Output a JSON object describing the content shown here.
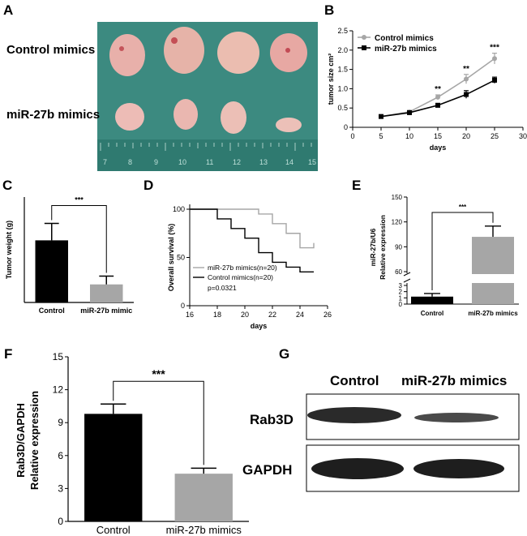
{
  "panel_letters": [
    "A",
    "B",
    "C",
    "D",
    "E",
    "F",
    "G"
  ],
  "panel_a": {
    "row_labels": [
      "Control mimics",
      "miR-27b mimics"
    ],
    "ruler_numbers": [
      "7",
      "8",
      "9",
      "10",
      "11",
      "12",
      "13",
      "14",
      "15"
    ]
  },
  "panel_g": {
    "lane_labels": [
      "Control",
      "miR-27b mimics"
    ],
    "band_labels": [
      "Rab3D",
      "GAPDH"
    ]
  },
  "colors": {
    "control": "#000000",
    "treatment": "#a6a6a6",
    "tumor": "#e8b0aa",
    "background_a": "#3c8a80"
  },
  "chart_data": [
    {
      "panel": "B",
      "type": "line",
      "x": [
        5,
        10,
        15,
        20,
        25
      ],
      "series": [
        {
          "name": "Control mimics",
          "values": [
            0.28,
            0.4,
            0.78,
            1.25,
            1.78
          ],
          "errors": [
            0.02,
            0.04,
            0.06,
            0.12,
            0.14
          ],
          "color": "#a6a6a6"
        },
        {
          "name": "miR-27b mimics",
          "values": [
            0.28,
            0.38,
            0.57,
            0.85,
            1.22
          ],
          "errors": [
            0.02,
            0.03,
            0.05,
            0.1,
            0.08
          ],
          "color": "#000000"
        }
      ],
      "annotations": [
        {
          "x": 15,
          "text": "**"
        },
        {
          "x": 20,
          "text": "**"
        },
        {
          "x": 25,
          "text": "***"
        }
      ],
      "xlabel": "days",
      "ylabel": "tumor size cm²",
      "xlim": [
        0,
        30
      ],
      "ylim": [
        0,
        2.5
      ],
      "xticks": [
        "0",
        "5",
        "10",
        "15",
        "20",
        "25",
        "30"
      ],
      "yticks": [
        "0",
        "0.5",
        "1.0",
        "1.5",
        "2.0",
        "2.5"
      ],
      "legend": "top-left"
    },
    {
      "panel": "C",
      "type": "bar",
      "categories": [
        "Control",
        "miR-27b mimic"
      ],
      "values": [
        1.65,
        0.48
      ],
      "errors": [
        0.45,
        0.22
      ],
      "colors": [
        "#000000",
        "#a6a6a6"
      ],
      "ylabel": "Tumor weight (g)",
      "ylim": [
        0,
        2.8
      ],
      "significance": "***"
    },
    {
      "panel": "D",
      "type": "line",
      "series": [
        {
          "name": "miR-27b mimics(n=20)",
          "color": "#a6a6a6",
          "x": [
            16,
            21,
            22,
            23,
            24,
            25
          ],
          "values": [
            100,
            95,
            85,
            75,
            60,
            65
          ]
        },
        {
          "name": "Control mimics(n=20)",
          "color": "#000000",
          "x": [
            16,
            18,
            19,
            20,
            21,
            22,
            23,
            24,
            25
          ],
          "values": [
            100,
            90,
            80,
            70,
            55,
            45,
            40,
            35,
            35
          ]
        }
      ],
      "annotation": "p=0.0321",
      "xlabel": "days",
      "ylabel": "Overall survival (%)",
      "xlim": [
        16,
        26
      ],
      "ylim": [
        0,
        100
      ],
      "xticks": [
        "16",
        "18",
        "20",
        "22",
        "24",
        "26"
      ],
      "yticks": [
        "0",
        "50",
        "100"
      ]
    },
    {
      "panel": "E",
      "type": "bar",
      "categories": [
        "Control",
        "miR-27b mimics"
      ],
      "values": [
        1.2,
        102
      ],
      "errors": [
        0.5,
        13
      ],
      "colors": [
        "#000000",
        "#a6a6a6"
      ],
      "ylabel": [
        "miR-27b/U6",
        "Relative  expression"
      ],
      "yticks": [
        "0",
        "1",
        "2",
        "3",
        "60",
        "90",
        "120",
        "150"
      ],
      "axis_break": [
        3,
        45
      ],
      "significance": "***"
    },
    {
      "panel": "F",
      "type": "bar",
      "categories": [
        "Control",
        "miR-27b mimics"
      ],
      "values": [
        9.8,
        4.35
      ],
      "errors": [
        0.9,
        0.5
      ],
      "colors": [
        "#000000",
        "#a6a6a6"
      ],
      "ylabel": [
        "Rab3D/GAPDH",
        "Relative  expression"
      ],
      "ylim": [
        0,
        15
      ],
      "yticks": [
        "0",
        "3",
        "6",
        "9",
        "12",
        "15"
      ],
      "significance": "***"
    }
  ]
}
